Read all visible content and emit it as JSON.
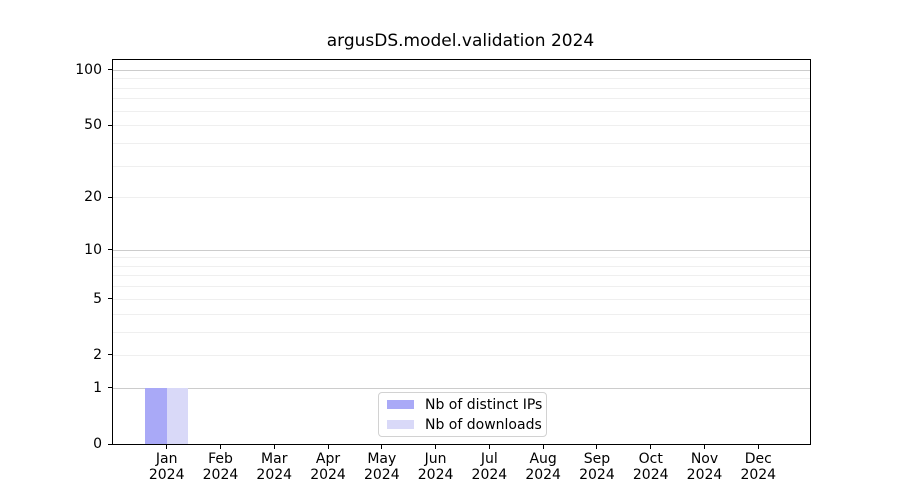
{
  "title": "argusDS.model.validation 2024",
  "chart_data": {
    "type": "bar",
    "title": "argusDS.model.validation 2024",
    "categories": [
      "Jan 2024",
      "Feb 2024",
      "Mar 2024",
      "Apr 2024",
      "May 2024",
      "Jun 2024",
      "Jul 2024",
      "Aug 2024",
      "Sep 2024",
      "Oct 2024",
      "Nov 2024",
      "Dec 2024"
    ],
    "x_months": [
      "Jan",
      "Feb",
      "Mar",
      "Apr",
      "May",
      "Jun",
      "Jul",
      "Aug",
      "Sep",
      "Oct",
      "Nov",
      "Dec"
    ],
    "x_year": "2024",
    "series": [
      {
        "name": "Nb of distinct IPs",
        "color": "#a9a9f7",
        "values": [
          1,
          0,
          0,
          0,
          0,
          0,
          0,
          0,
          0,
          0,
          0,
          0
        ]
      },
      {
        "name": "Nb of downloads",
        "color": "#d9d9f8",
        "values": [
          1,
          0,
          0,
          0,
          0,
          0,
          0,
          0,
          0,
          0,
          0,
          0
        ]
      }
    ],
    "xlabel": "",
    "ylabel": "",
    "yscale": "log1p",
    "ylim": [
      0,
      113
    ],
    "ytick_labels": [
      0,
      1,
      2,
      5,
      10,
      20,
      50,
      100
    ],
    "grid_major": [
      1,
      10,
      100
    ],
    "grid_minor": [
      2,
      3,
      4,
      5,
      6,
      7,
      8,
      9,
      20,
      30,
      40,
      50,
      60,
      70,
      80,
      90
    ],
    "grid": "horizontal",
    "legend_position": "lower center",
    "colors": {
      "spine": "#000000",
      "grid_major": "#cccccc",
      "grid_minor": "#efefef",
      "legend_border": "#d2d2d2",
      "background": "#ffffff"
    }
  }
}
